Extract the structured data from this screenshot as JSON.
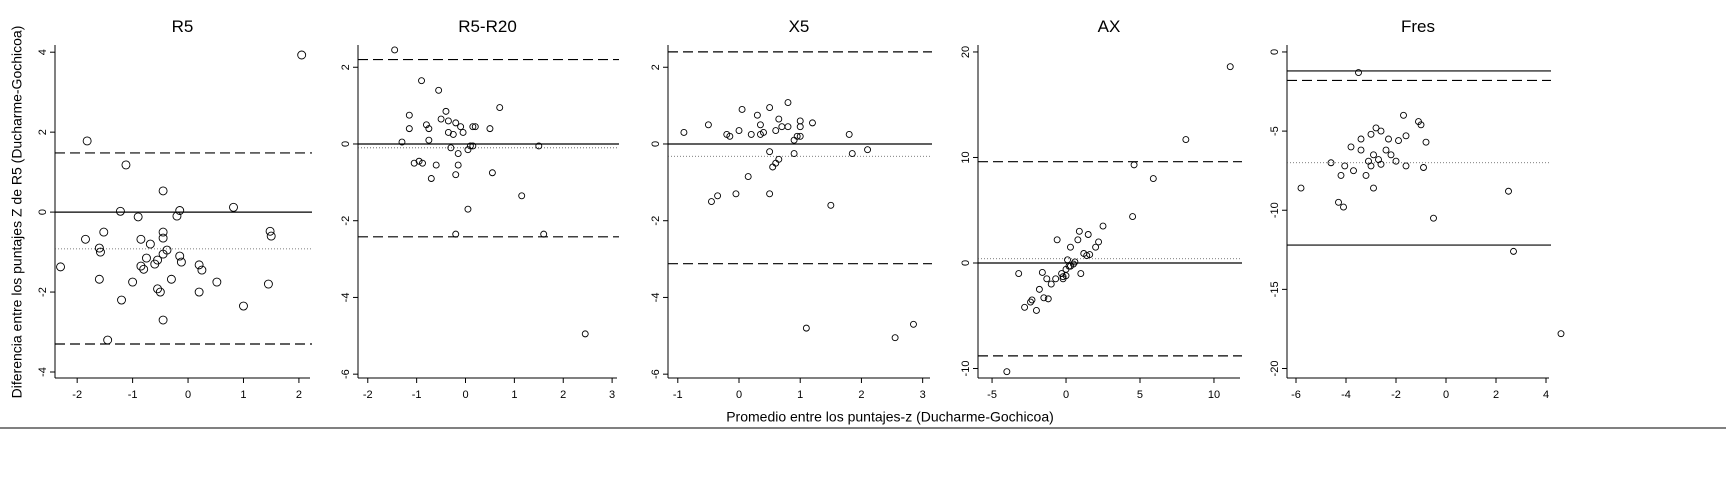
{
  "y_label": "Diferencia entre los puntajes Z de R5 (Ducharme-Gochicoa)",
  "x_label": "Promedio entre los puntajes-z (Ducharme-Gochicoa)",
  "chart_data": [
    {
      "type": "scatter",
      "title": "R5",
      "marker_size": 4,
      "xlim": [
        -2.4,
        2.2
      ],
      "ylim": [
        -4.15,
        4.18
      ],
      "xticks": [
        -2,
        -1,
        0,
        1,
        2
      ],
      "yticks": [
        -4,
        -2,
        0,
        2,
        4
      ],
      "lines": [
        {
          "y": 0,
          "style": "solid"
        },
        {
          "y": 1.48,
          "style": "dashed"
        },
        {
          "y": -3.3,
          "style": "dashed"
        },
        {
          "y": -0.92,
          "style": "dotted"
        }
      ],
      "x": [
        -2.3,
        -1.82,
        -1.85,
        -1.6,
        -1.58,
        -1.6,
        -1.52,
        -1.45,
        -1.22,
        -1.2,
        -1.12,
        -1.0,
        -0.9,
        -0.85,
        -0.85,
        -0.8,
        -0.75,
        -0.68,
        -0.6,
        -0.55,
        -0.55,
        -0.5,
        -0.45,
        -0.45,
        -0.45,
        -0.45,
        -0.45,
        -0.38,
        -0.3,
        -0.2,
        -0.15,
        -0.15,
        -0.12,
        0.2,
        0.2,
        0.25,
        0.52,
        0.82,
        1.0,
        1.48,
        1.5,
        1.45,
        2.05
      ],
      "values": [
        -1.37,
        1.78,
        -0.68,
        -0.9,
        -1.0,
        -1.68,
        -0.5,
        -3.2,
        0.02,
        -2.2,
        1.18,
        -1.75,
        -0.12,
        -0.68,
        -1.35,
        -1.43,
        -1.15,
        -0.8,
        -1.3,
        -1.2,
        -1.92,
        -2.0,
        -1.05,
        -0.5,
        -0.65,
        -2.7,
        0.53,
        -0.95,
        -1.68,
        -0.1,
        0.04,
        -1.1,
        -1.25,
        -1.32,
        -2.0,
        -1.45,
        -1.75,
        0.12,
        -2.35,
        -0.48,
        -0.6,
        -1.8,
        3.93
      ]
    },
    {
      "type": "scatter",
      "title": "R5-R20",
      "marker_size": 3,
      "xlim": [
        -2.2,
        3.1
      ],
      "ylim": [
        -6.1,
        2.58
      ],
      "xticks": [
        -2,
        -1,
        0,
        1,
        2,
        3
      ],
      "yticks": [
        -6,
        -4,
        -2,
        0,
        2
      ],
      "lines": [
        {
          "y": 0,
          "style": "solid"
        },
        {
          "y": 2.2,
          "style": "dashed"
        },
        {
          "y": -2.42,
          "style": "dashed"
        },
        {
          "y": -0.1,
          "style": "dotted"
        }
      ],
      "x": [
        -1.45,
        -1.3,
        -1.15,
        -1.15,
        -1.05,
        -0.9,
        -0.95,
        -0.88,
        -0.8,
        -0.75,
        -0.7,
        -0.75,
        -0.6,
        -0.55,
        -0.5,
        -0.4,
        -0.35,
        -0.35,
        -0.3,
        -0.25,
        -0.2,
        -0.2,
        -0.15,
        -0.15,
        -0.2,
        -0.1,
        -0.05,
        0.05,
        0.05,
        0.1,
        0.15,
        0.2,
        0.15,
        0.5,
        0.55,
        0.7,
        1.15,
        1.5,
        1.6,
        2.45
      ],
      "values": [
        2.45,
        0.05,
        0.75,
        0.4,
        -0.5,
        1.65,
        -0.45,
        -0.5,
        0.5,
        0.4,
        -0.9,
        0.1,
        -0.55,
        1.4,
        0.65,
        0.85,
        0.6,
        0.3,
        -0.1,
        0.25,
        -0.8,
        0.55,
        -0.25,
        -0.55,
        -2.35,
        0.45,
        0.3,
        -1.7,
        -0.15,
        -0.05,
        0.45,
        0.45,
        -0.05,
        0.4,
        -0.75,
        0.95,
        -1.35,
        -0.05,
        -2.35,
        -4.95
      ]
    },
    {
      "type": "scatter",
      "title": "X5",
      "marker_size": 3,
      "xlim": [
        -1.16,
        3.12
      ],
      "ylim": [
        -6.1,
        2.58
      ],
      "xticks": [
        -1,
        0,
        1,
        2,
        3
      ],
      "yticks": [
        -6,
        -4,
        -2,
        0,
        2
      ],
      "lines": [
        {
          "y": 0,
          "style": "solid"
        },
        {
          "y": 2.4,
          "style": "dashed"
        },
        {
          "y": -3.12,
          "style": "dashed"
        },
        {
          "y": -0.32,
          "style": "dotted"
        }
      ],
      "x": [
        -0.9,
        -0.5,
        -0.45,
        -0.35,
        -0.2,
        -0.15,
        -0.05,
        0.0,
        0.05,
        0.15,
        0.2,
        0.3,
        0.35,
        0.35,
        0.4,
        0.5,
        0.5,
        0.5,
        0.55,
        0.6,
        0.6,
        0.65,
        0.65,
        0.7,
        0.8,
        0.8,
        0.9,
        0.9,
        0.95,
        1.0,
        1.0,
        1.0,
        1.1,
        1.2,
        1.5,
        1.8,
        1.85,
        2.1,
        2.55,
        2.85
      ],
      "values": [
        0.3,
        0.5,
        -1.5,
        -1.35,
        0.25,
        0.2,
        -1.3,
        0.35,
        0.9,
        -0.85,
        0.25,
        0.75,
        0.25,
        0.5,
        0.3,
        0.95,
        -0.2,
        -1.3,
        -0.6,
        0.35,
        -0.5,
        -0.4,
        0.65,
        0.45,
        1.08,
        0.45,
        0.1,
        -0.25,
        0.2,
        0.6,
        0.45,
        0.2,
        -4.8,
        0.55,
        -1.6,
        0.25,
        -0.25,
        -0.15,
        -5.05,
        -4.7
      ]
    },
    {
      "type": "scatter",
      "title": "AX",
      "marker_size": 3,
      "xlim": [
        -5.95,
        11.76
      ],
      "ylim": [
        -10.9,
        20.66
      ],
      "xticks": [
        -5,
        0,
        5,
        10
      ],
      "yticks": [
        -10,
        0,
        10,
        20
      ],
      "lines": [
        {
          "y": 0,
          "style": "solid"
        },
        {
          "y": 9.6,
          "style": "dashed"
        },
        {
          "y": -8.8,
          "style": "dashed"
        },
        {
          "y": 0.4,
          "style": "dotted"
        }
      ],
      "x": [
        -4,
        -3.2,
        -2.8,
        -2.4,
        -2.3,
        -2.0,
        -1.8,
        -1.6,
        -1.5,
        -1.3,
        -1.2,
        -1.0,
        -0.7,
        -0.6,
        -0.3,
        -0.2,
        -0.2,
        0,
        0,
        0.1,
        0.2,
        0.3,
        0.3,
        0.5,
        0.6,
        0.8,
        0.9,
        1.0,
        1.2,
        1.4,
        1.5,
        1.6,
        2.0,
        2.2,
        2.5,
        4.5,
        4.6,
        5.9,
        8.1,
        11.1
      ],
      "values": [
        -10.3,
        -1,
        -4.2,
        -3.7,
        -3.5,
        -4.5,
        -2.5,
        -0.9,
        -3.3,
        -1.5,
        -3.4,
        -2.0,
        -1.5,
        2.2,
        -1.0,
        -1.3,
        -1.5,
        -0.6,
        -1.2,
        0.3,
        -0.3,
        1.5,
        -0.3,
        -0.1,
        0.1,
        2.2,
        3.0,
        -1.0,
        0.9,
        0.7,
        2.7,
        0.8,
        1.5,
        2.0,
        3.5,
        4.4,
        9.3,
        8.0,
        11.7,
        18.6
      ]
    },
    {
      "type": "scatter",
      "title": "Fres",
      "marker_size": 3,
      "xlim": [
        -6.36,
        4.12
      ],
      "ylim": [
        -20.6,
        0.44
      ],
      "xticks": [
        -6,
        -4,
        -2,
        0,
        2,
        4
      ],
      "yticks": [
        -20,
        -15,
        -10,
        -5,
        0
      ],
      "lines": [
        {
          "y": -1.2,
          "style": "solid"
        },
        {
          "y": -12.2,
          "style": "solid"
        },
        {
          "y": -1.8,
          "style": "dashed"
        },
        {
          "y": -7.0,
          "style": "dotted"
        }
      ],
      "x": [
        -5.8,
        -4.6,
        -4.3,
        -4.2,
        -4.1,
        -4.05,
        -3.8,
        -3.7,
        -3.4,
        -3.5,
        -3.4,
        -3.2,
        -3.1,
        -3.0,
        -3.0,
        -2.9,
        -2.9,
        -2.8,
        -2.7,
        -2.6,
        -2.6,
        -2.4,
        -2.3,
        -2.2,
        -2.0,
        -1.9,
        -1.7,
        -1.6,
        -1.6,
        -1.1,
        -1.0,
        -0.9,
        -0.8,
        -0.5,
        2.5,
        2.7,
        4.6
      ],
      "values": [
        -8.6,
        -7.0,
        -9.5,
        -7.8,
        -9.8,
        -7.2,
        -6.0,
        -7.5,
        -6.2,
        -1.3,
        -5.5,
        -7.8,
        -6.9,
        -7.2,
        -5.2,
        -8.6,
        -6.5,
        -4.8,
        -6.8,
        -5.0,
        -7.1,
        -6.2,
        -5.5,
        -6.5,
        -6.9,
        -5.6,
        -4.0,
        -7.2,
        -5.3,
        -4.4,
        -4.6,
        -7.3,
        -5.7,
        -10.5,
        -8.8,
        -12.6,
        -17.8
      ]
    }
  ]
}
